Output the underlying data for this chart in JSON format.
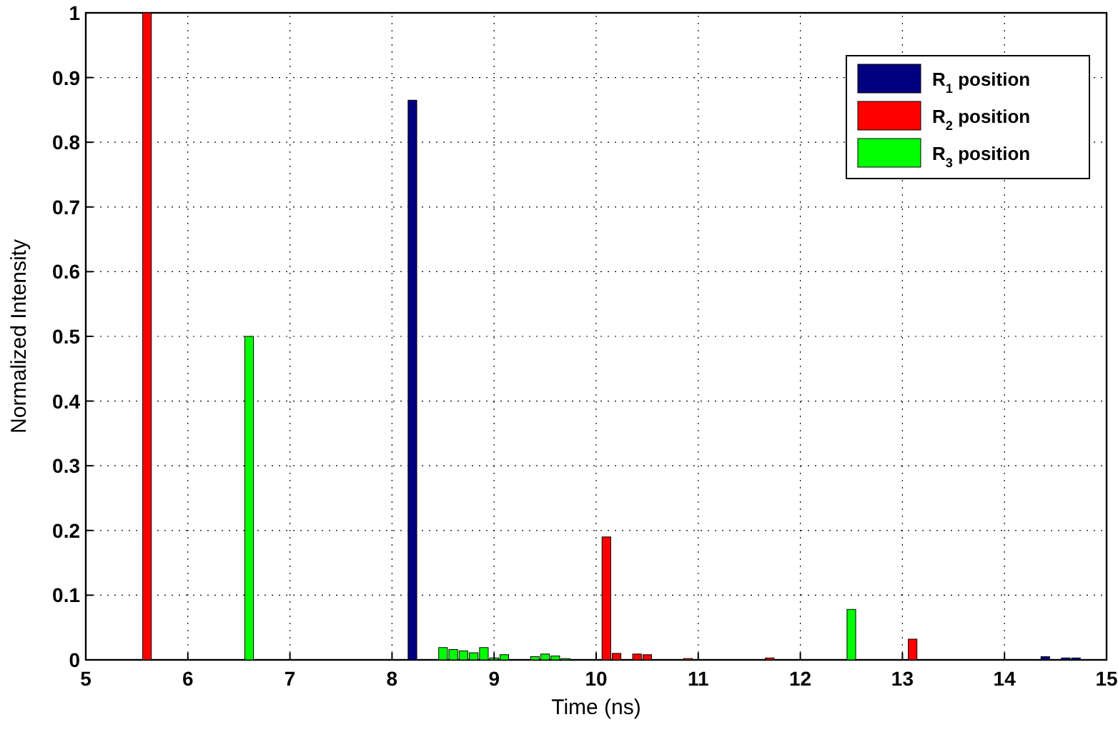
{
  "chart_data": {
    "type": "bar",
    "xlabel": "Time (ns)",
    "ylabel": "Normalized Intensity",
    "series": [
      {
        "name": "R$_{1}$ position",
        "color": "#000080",
        "x": [
          8.2,
          14.4,
          14.6,
          14.7
        ],
        "values": [
          0.865,
          0.005,
          0.003,
          0.003
        ]
      },
      {
        "name": "R$_{2}$ position",
        "color": "#ff0000",
        "x": [
          5.6,
          10.1,
          10.2,
          10.4,
          10.5,
          10.9,
          11.7,
          13.1
        ],
        "values": [
          1.0,
          0.19,
          0.01,
          0.009,
          0.008,
          0.002,
          0.003,
          0.032
        ]
      },
      {
        "name": "R$_{3}$ position",
        "color": "#00ff00",
        "x": [
          6.6,
          8.5,
          8.6,
          8.7,
          8.8,
          8.9,
          9.0,
          9.1,
          9.4,
          9.5,
          9.6,
          9.7,
          12.5
        ],
        "values": [
          0.5,
          0.019,
          0.016,
          0.014,
          0.011,
          0.019,
          0.003,
          0.008,
          0.005,
          0.009,
          0.006,
          0.002,
          0.078
        ]
      }
    ],
    "xlim": [
      5,
      15
    ],
    "xticks": [
      5,
      6,
      7,
      8,
      9,
      10,
      11,
      12,
      13,
      14,
      15
    ],
    "ylim": [
      0,
      1
    ],
    "yticks": [
      0,
      0.1,
      0.2,
      0.3,
      0.4,
      0.5,
      0.6,
      0.7,
      0.8,
      0.9,
      1
    ],
    "grid": true,
    "legend": "top right"
  }
}
